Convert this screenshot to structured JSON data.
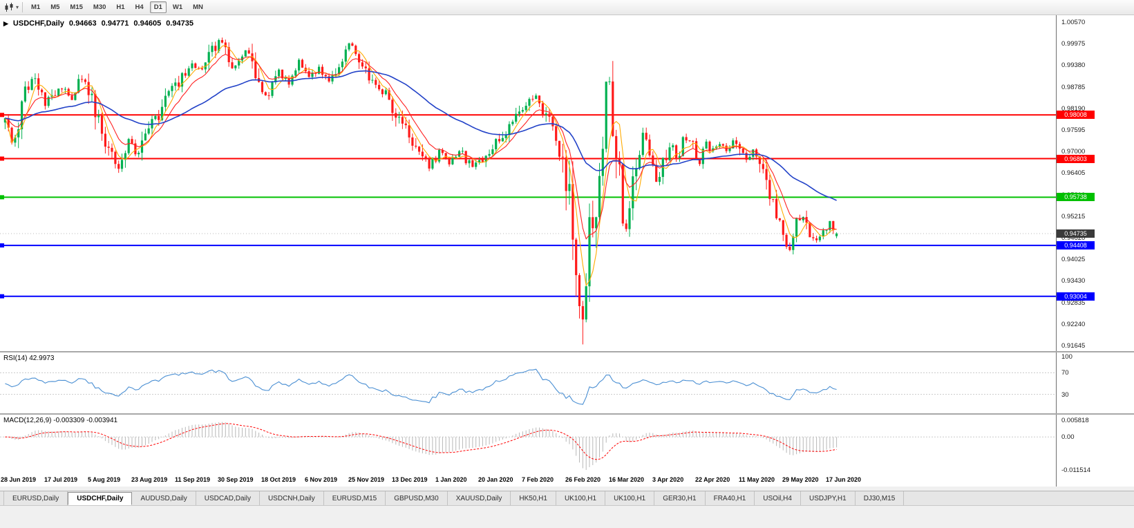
{
  "icons": {
    "symbol_marker": "▶",
    "dropdown_caret": "▾"
  },
  "toolbar": {
    "timeframes": [
      {
        "label": "M1",
        "active": false
      },
      {
        "label": "M5",
        "active": false
      },
      {
        "label": "M15",
        "active": false
      },
      {
        "label": "M30",
        "active": false
      },
      {
        "label": "H1",
        "active": false
      },
      {
        "label": "H4",
        "active": false
      },
      {
        "label": "D1",
        "active": true
      },
      {
        "label": "W1",
        "active": false
      },
      {
        "label": "MN",
        "active": false
      }
    ]
  },
  "main_chart": {
    "symbol_label": "USDCHF,Daily",
    "open": "0.94663",
    "high": "0.94771",
    "low": "0.94605",
    "close": "0.94735",
    "price_scale": {
      "min": 0.91645,
      "max": 1.0057,
      "labels": [
        "1.00570",
        "0.99975",
        "0.99380",
        "0.98785",
        "0.98190",
        "0.97595",
        "0.97000",
        "0.96405",
        "0.95810",
        "0.95215",
        "0.94620",
        "0.94025",
        "0.93430",
        "0.92835",
        "0.92240",
        "0.91645"
      ]
    },
    "hlines": [
      {
        "value": 0.98008,
        "label": "0.98008",
        "color": "#ff0000",
        "type": "resistance"
      },
      {
        "value": 0.96803,
        "label": "0.96803",
        "color": "#ff0000",
        "type": "resistance"
      },
      {
        "value": 0.95738,
        "label": "0.95738",
        "color": "#00c000",
        "type": "level"
      },
      {
        "value": 0.94408,
        "label": "0.94408",
        "color": "#0000ff",
        "type": "support"
      },
      {
        "value": 0.93004,
        "label": "0.93004",
        "color": "#0000ff",
        "type": "support"
      }
    ],
    "current_price": {
      "value": 0.94735,
      "label": "0.94735",
      "badge_color": "#3a3a3a"
    },
    "colors": {
      "up": "#00b050",
      "down": "#ff1a1a",
      "ma_fast": "#ff2020",
      "ma_mid": "#ffaa00",
      "ma_slow": "#2242c8"
    }
  },
  "rsi_panel": {
    "label": "RSI(14) 42.9973",
    "period": 14,
    "value": 42.9973,
    "levels": [
      70,
      30
    ],
    "scale_labels": [
      "100",
      "70",
      "30"
    ],
    "line_color": "#4a8fd3"
  },
  "macd_panel": {
    "label": "MACD(12,26,9) -0.003309 -0.003941",
    "macd_value": -0.003309,
    "signal_value": -0.003941,
    "scale_max": 0.005818,
    "scale_min": -0.011514,
    "scale_labels": [
      "0.005818",
      "0.00",
      "-0.011514"
    ],
    "histogram_color": "#b8b8b8",
    "signal_color": "#ff0000"
  },
  "x_axis_dates": [
    "28 Jun 2019",
    "17 Jul 2019",
    "5 Aug 2019",
    "23 Aug 2019",
    "11 Sep 2019",
    "30 Sep 2019",
    "18 Oct 2019",
    "6 Nov 2019",
    "25 Nov 2019",
    "13 Dec 2019",
    "1 Jan 2020",
    "20 Jan 2020",
    "7 Feb 2020",
    "26 Feb 2020",
    "16 Mar 2020",
    "3 Apr 2020",
    "22 Apr 2020",
    "11 May 2020",
    "29 May 2020",
    "17 Jun 2020"
  ],
  "tabs": [
    {
      "label": "EURUSD,Daily",
      "active": false
    },
    {
      "label": "USDCHF,Daily",
      "active": true
    },
    {
      "label": "AUDUSD,Daily",
      "active": false
    },
    {
      "label": "USDCAD,Daily",
      "active": false
    },
    {
      "label": "USDCNH,Daily",
      "active": false
    },
    {
      "label": "EURUSD,M15",
      "active": false
    },
    {
      "label": "GBPUSD,M30",
      "active": false
    },
    {
      "label": "XAUUSD,Daily",
      "active": false
    },
    {
      "label": "HK50,H1",
      "active": false
    },
    {
      "label": "UK100,H1",
      "active": false
    },
    {
      "label": "UK100,H1",
      "active": false
    },
    {
      "label": "GER30,H1",
      "active": false
    },
    {
      "label": "FRA40,H1",
      "active": false
    },
    {
      "label": "USOil,H4",
      "active": false
    },
    {
      "label": "USDJPY,H1",
      "active": false
    },
    {
      "label": "DJ30,M15",
      "active": false
    }
  ],
  "chart_data": {
    "type": "candlestick",
    "symbol": "USDCHF",
    "timeframe": "Daily",
    "date_range": [
      "28 Jun 2019",
      "17 Jun 2020"
    ],
    "price_range": [
      0.91645,
      1.0057
    ],
    "num_candles": 250,
    "last_ohlc": {
      "open": 0.94663,
      "high": 0.94771,
      "low": 0.94605,
      "close": 0.94735
    },
    "horizontal_levels": [
      0.98008,
      0.96803,
      0.95738,
      0.94408,
      0.93004
    ],
    "indicators": [
      {
        "name": "RSI",
        "period": 14,
        "value": 42.9973
      },
      {
        "name": "MACD",
        "fast": 12,
        "slow": 26,
        "signal_period": 9,
        "macd": -0.003309,
        "signal": -0.003941
      },
      {
        "name": "MA-fast",
        "color": "red"
      },
      {
        "name": "MA-mid",
        "color": "orange"
      },
      {
        "name": "MA-slow",
        "color": "blue"
      }
    ],
    "price_path_anchors": [
      [
        0,
        0.978
      ],
      [
        0.01,
        0.972
      ],
      [
        0.025,
        0.987
      ],
      [
        0.035,
        0.99
      ],
      [
        0.048,
        0.9835
      ],
      [
        0.066,
        0.988
      ],
      [
        0.08,
        0.9845
      ],
      [
        0.095,
        0.9915
      ],
      [
        0.105,
        0.984
      ],
      [
        0.118,
        0.972
      ],
      [
        0.13,
        0.968
      ],
      [
        0.136,
        0.9645
      ],
      [
        0.143,
        0.97
      ],
      [
        0.15,
        0.975
      ],
      [
        0.158,
        0.968
      ],
      [
        0.167,
        0.973
      ],
      [
        0.175,
        0.98
      ],
      [
        0.184,
        0.978
      ],
      [
        0.196,
        0.986
      ],
      [
        0.212,
        0.99
      ],
      [
        0.224,
        0.995
      ],
      [
        0.237,
        0.992
      ],
      [
        0.249,
        0.9975
      ],
      [
        0.261,
        1.001
      ],
      [
        0.274,
        0.993
      ],
      [
        0.286,
        0.996
      ],
      [
        0.295,
        0.999
      ],
      [
        0.304,
        0.988
      ],
      [
        0.315,
        0.9845
      ],
      [
        0.328,
        0.992
      ],
      [
        0.34,
        0.989
      ],
      [
        0.353,
        0.995
      ],
      [
        0.365,
        0.99
      ],
      [
        0.378,
        0.993
      ],
      [
        0.39,
        0.99
      ],
      [
        0.403,
        0.995
      ],
      [
        0.415,
        0.9995
      ],
      [
        0.427,
        0.995
      ],
      [
        0.436,
        0.99
      ],
      [
        0.449,
        0.988
      ],
      [
        0.461,
        0.985
      ],
      [
        0.473,
        0.978
      ],
      [
        0.486,
        0.975
      ],
      [
        0.498,
        0.97
      ],
      [
        0.51,
        0.966
      ],
      [
        0.523,
        0.97
      ],
      [
        0.535,
        0.967
      ],
      [
        0.548,
        0.97
      ],
      [
        0.561,
        0.9655
      ],
      [
        0.577,
        0.968
      ],
      [
        0.59,
        0.972
      ],
      [
        0.602,
        0.975
      ],
      [
        0.614,
        0.98
      ],
      [
        0.627,
        0.983
      ],
      [
        0.639,
        0.985
      ],
      [
        0.651,
        0.98
      ],
      [
        0.66,
        0.975
      ],
      [
        0.672,
        0.968
      ],
      [
        0.68,
        0.955
      ],
      [
        0.689,
        0.935
      ],
      [
        0.693,
        0.92
      ],
      [
        0.697,
        0.93
      ],
      [
        0.701,
        0.945
      ],
      [
        0.705,
        0.955
      ],
      [
        0.71,
        0.95
      ],
      [
        0.714,
        0.96
      ],
      [
        0.718,
        0.97
      ],
      [
        0.722,
        0.985
      ],
      [
        0.726,
        0.99
      ],
      [
        0.73,
        0.98
      ],
      [
        0.734,
        0.97
      ],
      [
        0.739,
        0.962
      ],
      [
        0.743,
        0.95
      ],
      [
        0.747,
        0.948
      ],
      [
        0.751,
        0.955
      ],
      [
        0.759,
        0.965
      ],
      [
        0.768,
        0.975
      ],
      [
        0.776,
        0.97
      ],
      [
        0.784,
        0.962
      ],
      [
        0.793,
        0.968
      ],
      [
        0.801,
        0.972
      ],
      [
        0.809,
        0.968
      ],
      [
        0.817,
        0.974
      ],
      [
        0.826,
        0.972
      ],
      [
        0.834,
        0.966
      ],
      [
        0.842,
        0.972
      ],
      [
        0.851,
        0.97
      ],
      [
        0.859,
        0.972
      ],
      [
        0.867,
        0.97
      ],
      [
        0.876,
        0.973
      ],
      [
        0.884,
        0.97
      ],
      [
        0.892,
        0.968
      ],
      [
        0.9,
        0.97
      ],
      [
        0.909,
        0.965
      ],
      [
        0.917,
        0.96
      ],
      [
        0.925,
        0.955
      ],
      [
        0.934,
        0.95
      ],
      [
        0.942,
        0.942
      ],
      [
        0.95,
        0.95
      ],
      [
        0.959,
        0.953
      ],
      [
        0.967,
        0.948
      ],
      [
        0.975,
        0.945
      ],
      [
        0.984,
        0.947
      ],
      [
        0.992,
        0.95
      ],
      [
        1,
        0.9474
      ]
    ]
  }
}
